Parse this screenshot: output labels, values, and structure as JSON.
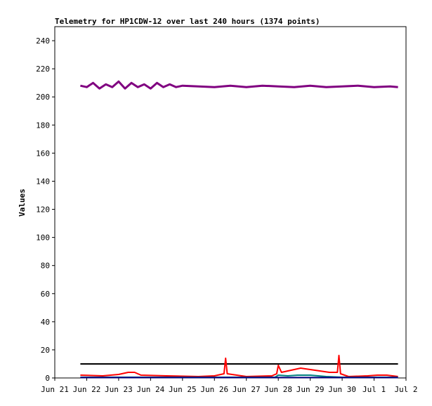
{
  "chart_data": {
    "type": "line",
    "title": "Telemetry for HP1CDW-12 over last 240 hours (1374 points)",
    "xlabel": "",
    "ylabel": "Values",
    "x_ticks": [
      "Jun 21",
      "Jun 22",
      "Jun 23",
      "Jun 24",
      "Jun 25",
      "Jun 26",
      "Jun 27",
      "Jun 28",
      "Jun 29",
      "Jun 30",
      "Jul 1",
      "Jul 2"
    ],
    "xlim_days": [
      0,
      11
    ],
    "ylim": [
      0,
      250
    ],
    "y_ticks": [
      0,
      20,
      40,
      60,
      80,
      100,
      120,
      140,
      160,
      180,
      200,
      220,
      240
    ],
    "grid": false,
    "series": [
      {
        "color": "#800080",
        "points": [
          [
            0.8,
            208
          ],
          [
            1.0,
            207
          ],
          [
            1.2,
            210
          ],
          [
            1.4,
            206
          ],
          [
            1.6,
            209
          ],
          [
            1.8,
            207
          ],
          [
            2.0,
            211
          ],
          [
            2.2,
            206
          ],
          [
            2.4,
            210
          ],
          [
            2.6,
            207
          ],
          [
            2.8,
            209
          ],
          [
            3.0,
            206
          ],
          [
            3.2,
            210
          ],
          [
            3.4,
            207
          ],
          [
            3.6,
            209
          ],
          [
            3.8,
            207
          ],
          [
            4.0,
            208
          ],
          [
            4.5,
            207.5
          ],
          [
            5.0,
            207
          ],
          [
            5.5,
            208
          ],
          [
            6.0,
            207
          ],
          [
            6.5,
            208
          ],
          [
            7.0,
            207.5
          ],
          [
            7.5,
            207
          ],
          [
            8.0,
            208
          ],
          [
            8.5,
            207
          ],
          [
            9.0,
            207.5
          ],
          [
            9.5,
            208
          ],
          [
            10.0,
            207
          ],
          [
            10.5,
            207.5
          ],
          [
            10.75,
            207
          ]
        ]
      },
      {
        "color": "#000000",
        "points": [
          [
            0.8,
            10
          ],
          [
            10.75,
            10
          ]
        ]
      },
      {
        "color": "#ff0000",
        "points": [
          [
            0.8,
            2
          ],
          [
            1.5,
            1.5
          ],
          [
            2.0,
            2.5
          ],
          [
            2.3,
            4
          ],
          [
            2.5,
            4
          ],
          [
            2.7,
            2
          ],
          [
            3.5,
            1.5
          ],
          [
            4.5,
            1
          ],
          [
            5.0,
            1.5
          ],
          [
            5.3,
            3
          ],
          [
            5.35,
            14
          ],
          [
            5.4,
            3
          ],
          [
            6.0,
            1
          ],
          [
            6.8,
            1.5
          ],
          [
            6.95,
            3
          ],
          [
            7.0,
            9
          ],
          [
            7.1,
            4
          ],
          [
            7.3,
            5
          ],
          [
            7.5,
            6
          ],
          [
            7.7,
            7
          ],
          [
            8.0,
            6
          ],
          [
            8.3,
            5
          ],
          [
            8.6,
            4
          ],
          [
            8.85,
            4
          ],
          [
            8.9,
            16
          ],
          [
            8.95,
            3
          ],
          [
            9.2,
            1
          ],
          [
            9.8,
            1.5
          ],
          [
            10.1,
            2
          ],
          [
            10.4,
            2
          ],
          [
            10.75,
            1
          ]
        ]
      },
      {
        "color": "#008080",
        "points": [
          [
            0.8,
            0.5
          ],
          [
            6.9,
            0.5
          ],
          [
            7.0,
            2
          ],
          [
            7.3,
            1.5
          ],
          [
            7.6,
            2
          ],
          [
            8.0,
            2
          ],
          [
            8.5,
            1
          ],
          [
            9.0,
            0.5
          ],
          [
            10.75,
            0.5
          ]
        ]
      },
      {
        "color": "#000080",
        "points": [
          [
            0.8,
            0.3
          ],
          [
            10.75,
            0.3
          ]
        ]
      }
    ]
  }
}
